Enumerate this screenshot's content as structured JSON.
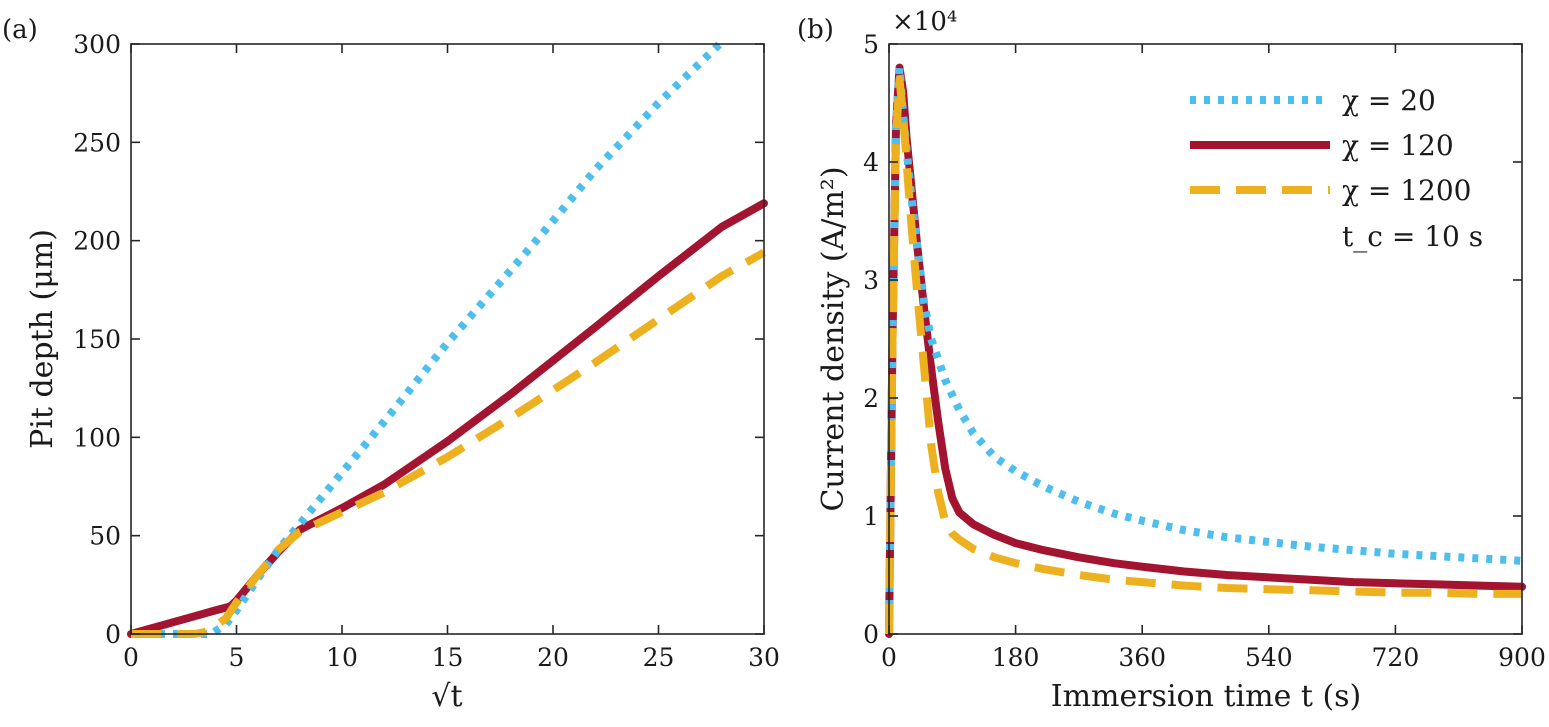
{
  "chart_data": [
    {
      "type": "line",
      "panel_label": "(a)",
      "xlabel": "√t",
      "ylabel": "Pit depth (μm)",
      "xlim": [
        0,
        30
      ],
      "ylim": [
        0,
        300
      ],
      "xticks": [
        0,
        5,
        10,
        15,
        20,
        25,
        30
      ],
      "yticks": [
        0,
        50,
        100,
        150,
        200,
        250,
        300
      ],
      "grid": false,
      "series": [
        {
          "name": "χ = 20",
          "color": "#4DBEEE",
          "style": "dotted",
          "x": [
            0,
            1,
            2,
            3,
            3.8,
            4.5,
            5,
            6,
            7,
            8,
            10,
            12,
            15,
            18,
            20,
            22,
            25,
            28
          ],
          "y": [
            0,
            0,
            0,
            0,
            0,
            5,
            12,
            28,
            43,
            56,
            82,
            108,
            148,
            185,
            210,
            236,
            270,
            301
          ]
        },
        {
          "name": "χ = 120",
          "color": "#A2142F",
          "style": "solid",
          "x": [
            0,
            1,
            2,
            3,
            4,
            4.7,
            5,
            6,
            7,
            8,
            10,
            12,
            15,
            18,
            20,
            22,
            25,
            28,
            30
          ],
          "y": [
            0,
            3,
            6,
            9,
            12,
            14,
            17,
            30,
            42,
            53,
            64,
            76,
            98,
            122,
            139,
            156,
            182,
            207,
            219
          ]
        },
        {
          "name": "χ = 1200",
          "color": "#EDB120",
          "style": "dashed",
          "x": [
            0,
            1,
            2,
            3,
            3.5,
            4,
            4.5,
            5,
            6,
            7,
            8,
            10,
            12,
            15,
            18,
            20,
            22,
            25,
            28,
            30
          ],
          "y": [
            0,
            0,
            0,
            0,
            1,
            4,
            8,
            16,
            30,
            43,
            52,
            62,
            72,
            90,
            110,
            124,
            138,
            160,
            182,
            194
          ]
        }
      ]
    },
    {
      "type": "line",
      "panel_label": "(b)",
      "xlabel": "Immersion time t (s)",
      "ylabel": "Current density (A/m²)",
      "y_multiplier": "×10⁴",
      "xlim": [
        0,
        900
      ],
      "ylim": [
        0,
        5
      ],
      "xticks": [
        0,
        180,
        360,
        540,
        720,
        900
      ],
      "yticks": [
        0,
        1,
        2,
        3,
        4,
        5
      ],
      "grid": false,
      "legend_placement": "top-right",
      "legend_note": "t_c = 10 s",
      "series": [
        {
          "name": "χ = 20",
          "color": "#4DBEEE",
          "style": "dotted",
          "x": [
            0,
            5,
            10,
            15,
            20,
            25,
            30,
            40,
            50,
            60,
            80,
            100,
            120,
            150,
            180,
            220,
            270,
            320,
            360,
            420,
            480,
            540,
            600,
            660,
            720,
            780,
            840,
            900
          ],
          "y": [
            0,
            2.5,
            4.3,
            4.8,
            4.4,
            4.1,
            3.8,
            3.3,
            2.8,
            2.5,
            2.15,
            1.9,
            1.7,
            1.5,
            1.38,
            1.25,
            1.12,
            1.02,
            0.96,
            0.88,
            0.82,
            0.78,
            0.74,
            0.71,
            0.68,
            0.66,
            0.64,
            0.62
          ]
        },
        {
          "name": "χ = 120",
          "color": "#A2142F",
          "style": "solid",
          "x": [
            0,
            5,
            10,
            15,
            20,
            25,
            30,
            40,
            50,
            60,
            70,
            80,
            90,
            100,
            120,
            150,
            180,
            220,
            270,
            320,
            360,
            420,
            480,
            540,
            600,
            660,
            720,
            780,
            840,
            900
          ],
          "y": [
            0,
            2.5,
            4.3,
            4.8,
            4.6,
            4.2,
            3.9,
            3.3,
            2.75,
            2.25,
            1.8,
            1.4,
            1.15,
            1.03,
            0.93,
            0.84,
            0.77,
            0.71,
            0.65,
            0.6,
            0.57,
            0.53,
            0.5,
            0.48,
            0.46,
            0.44,
            0.43,
            0.42,
            0.41,
            0.4
          ]
        },
        {
          "name": "χ = 1200",
          "color": "#EDB120",
          "style": "dashed",
          "x": [
            0,
            5,
            10,
            15,
            20,
            25,
            30,
            40,
            50,
            60,
            70,
            80,
            90,
            100,
            120,
            150,
            180,
            220,
            270,
            320,
            360,
            420,
            480,
            540,
            600,
            660,
            720,
            780,
            840,
            900
          ],
          "y": [
            0,
            2.5,
            4.2,
            4.7,
            4.4,
            4.0,
            3.6,
            2.9,
            2.25,
            1.6,
            1.2,
            0.95,
            0.85,
            0.8,
            0.72,
            0.65,
            0.6,
            0.55,
            0.5,
            0.46,
            0.44,
            0.41,
            0.39,
            0.38,
            0.37,
            0.36,
            0.35,
            0.35,
            0.34,
            0.34
          ]
        }
      ]
    }
  ]
}
